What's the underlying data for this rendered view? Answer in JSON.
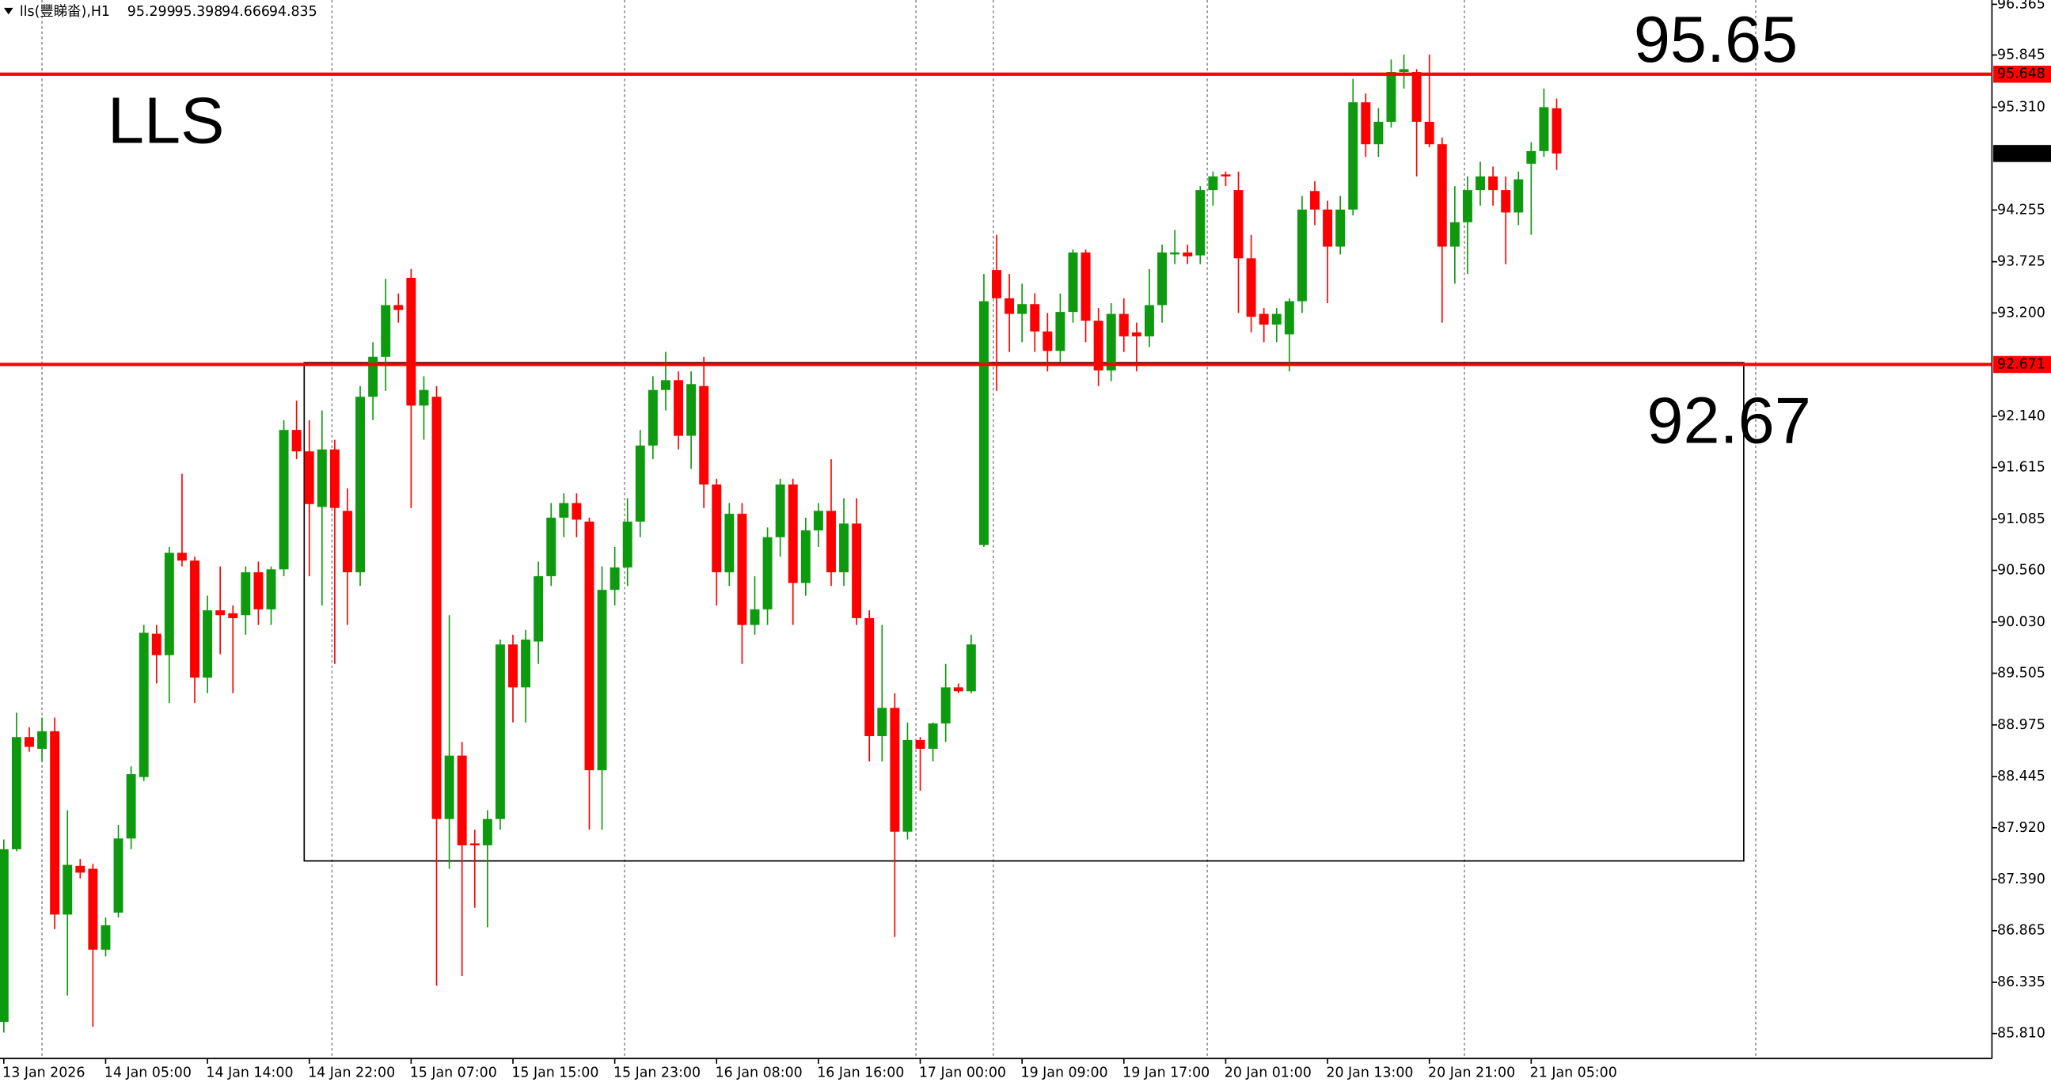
{
  "chart_data": {
    "type": "candlestick",
    "title": "lls(豐睇畓),H1",
    "up_color": "#0e9a0e",
    "down_color": "#ff0000",
    "open": [
      85.93,
      87.7,
      88.85,
      88.73,
      88.91,
      87.03,
      87.53,
      87.5,
      86.67,
      87.05,
      87.81,
      88.44,
      89.91,
      89.69,
      90.74,
      90.66,
      89.46,
      90.15,
      90.12,
      90.1,
      90.54,
      90.16,
      90.57,
      92.0,
      91.78,
      91.21,
      91.8,
      91.17,
      90.54,
      92.34,
      92.75,
      93.28,
      93.56,
      92.25,
      92.34,
      88.01,
      88.66,
      87.76,
      87.74,
      88.01,
      89.8,
      89.36,
      89.83,
      90.5,
      91.1,
      91.25,
      91.06,
      88.51,
      90.36,
      90.59,
      91.06,
      91.84,
      92.41,
      92.51,
      91.94,
      92.45,
      91.44,
      90.54,
      91.14,
      90.0,
      90.16,
      90.9,
      91.44,
      90.43,
      90.97,
      91.17,
      90.54,
      91.04,
      90.07,
      88.86,
      89.15,
      87.88,
      88.82,
      88.73,
      88.99,
      89.36,
      89.32,
      90.82,
      93.64,
      93.35,
      93.19,
      93.29,
      93.01,
      92.81,
      93.21,
      93.82,
      93.12,
      92.61,
      93.19,
      93.0,
      92.96,
      93.28,
      93.8,
      93.82,
      93.79,
      94.46,
      94.62,
      94.46,
      93.76,
      93.19,
      93.08,
      92.98,
      93.32,
      94.45,
      94.26,
      93.88,
      94.26,
      95.36,
      94.93,
      95.16,
      95.67,
      95.67,
      95.16,
      94.93,
      93.88,
      94.13,
      94.46,
      94.6,
      94.46,
      94.23,
      94.73,
      94.86,
      95.299
    ],
    "high": [
      87.8,
      89.1,
      88.95,
      89.05,
      89.05,
      88.1,
      87.6,
      87.55,
      87.0,
      87.95,
      88.55,
      90.0,
      90.0,
      90.8,
      91.55,
      90.7,
      90.3,
      90.6,
      90.2,
      90.6,
      90.65,
      90.6,
      92.1,
      92.3,
      92.1,
      92.2,
      91.9,
      91.4,
      92.45,
      92.9,
      93.55,
      93.4,
      93.65,
      92.55,
      92.45,
      90.1,
      88.8,
      87.9,
      88.1,
      89.85,
      89.9,
      89.95,
      90.65,
      91.25,
      91.35,
      91.35,
      91.1,
      90.6,
      90.8,
      91.3,
      92.0,
      92.55,
      92.8,
      92.6,
      92.6,
      92.75,
      91.5,
      91.25,
      91.25,
      90.5,
      91.0,
      91.5,
      91.5,
      91.1,
      91.25,
      91.7,
      91.3,
      91.3,
      90.15,
      90.0,
      89.3,
      89.0,
      88.85,
      89.0,
      89.6,
      89.4,
      89.9,
      93.6,
      94.0,
      93.6,
      93.5,
      93.4,
      93.2,
      93.4,
      93.85,
      93.85,
      93.25,
      93.3,
      93.35,
      93.1,
      93.65,
      93.9,
      94.05,
      93.9,
      94.5,
      94.65,
      94.65,
      94.65,
      94.0,
      93.25,
      93.25,
      93.35,
      94.4,
      94.55,
      94.35,
      94.4,
      95.6,
      95.45,
      95.3,
      95.8,
      95.85,
      95.7,
      95.85,
      95.0,
      94.5,
      94.6,
      94.75,
      94.7,
      94.6,
      94.65,
      94.95,
      95.5,
      95.398
    ],
    "low": [
      85.82,
      87.68,
      88.7,
      88.6,
      86.88,
      86.2,
      87.4,
      85.88,
      86.6,
      87.0,
      87.7,
      88.4,
      89.4,
      89.2,
      90.6,
      89.2,
      89.3,
      89.7,
      89.3,
      89.9,
      90.0,
      90.0,
      90.5,
      91.7,
      90.5,
      90.2,
      89.6,
      90.0,
      90.4,
      92.1,
      92.4,
      93.1,
      91.2,
      91.9,
      86.3,
      87.5,
      86.4,
      87.1,
      86.9,
      87.9,
      89.0,
      89.0,
      89.6,
      90.4,
      90.9,
      90.9,
      87.9,
      87.9,
      90.2,
      90.4,
      90.9,
      91.7,
      92.2,
      91.8,
      91.6,
      91.2,
      90.2,
      90.4,
      89.6,
      89.9,
      90.0,
      90.7,
      90.0,
      90.3,
      90.8,
      90.4,
      90.4,
      90.0,
      88.6,
      88.6,
      86.8,
      87.8,
      88.3,
      88.6,
      88.8,
      89.3,
      89.3,
      90.8,
      92.4,
      92.8,
      92.9,
      92.8,
      92.6,
      92.7,
      93.1,
      92.9,
      92.45,
      92.5,
      92.8,
      92.6,
      92.85,
      93.1,
      93.7,
      93.7,
      93.7,
      94.3,
      94.5,
      93.2,
      93.0,
      92.9,
      92.9,
      92.6,
      93.2,
      94.1,
      93.3,
      93.8,
      94.2,
      94.8,
      94.8,
      95.1,
      95.5,
      94.6,
      94.9,
      93.1,
      93.5,
      93.6,
      94.3,
      94.3,
      93.7,
      94.1,
      94.0,
      94.8,
      94.666
    ],
    "close": [
      87.7,
      88.85,
      88.75,
      88.91,
      87.03,
      87.54,
      87.46,
      86.67,
      86.92,
      87.81,
      88.47,
      89.92,
      89.69,
      90.74,
      90.66,
      89.46,
      90.15,
      90.1,
      90.07,
      90.54,
      90.16,
      90.57,
      92.0,
      91.78,
      91.24,
      91.8,
      91.2,
      90.54,
      92.34,
      92.75,
      93.28,
      93.23,
      92.25,
      92.41,
      88.01,
      88.66,
      87.74,
      87.74,
      88.01,
      89.8,
      89.36,
      89.85,
      90.5,
      91.1,
      91.25,
      91.08,
      88.51,
      90.36,
      90.59,
      91.06,
      91.84,
      92.41,
      92.51,
      91.94,
      92.47,
      91.44,
      90.54,
      91.14,
      90.0,
      90.16,
      90.9,
      91.44,
      90.43,
      90.97,
      91.17,
      90.54,
      91.04,
      90.07,
      88.86,
      89.15,
      87.88,
      88.82,
      88.73,
      88.99,
      89.36,
      89.32,
      89.8,
      93.32,
      93.35,
      93.19,
      93.29,
      93.01,
      92.81,
      93.21,
      93.82,
      93.12,
      92.61,
      93.19,
      92.96,
      92.96,
      93.28,
      93.82,
      93.82,
      93.78,
      94.46,
      94.6,
      94.6,
      93.76,
      93.16,
      93.08,
      93.19,
      93.32,
      94.26,
      94.26,
      93.88,
      94.26,
      95.36,
      94.93,
      95.16,
      95.67,
      95.7,
      95.16,
      94.93,
      93.88,
      94.13,
      94.46,
      94.6,
      94.46,
      94.23,
      94.57,
      94.86,
      95.31,
      94.835
    ],
    "xlim": [
      -0.3,
      156.2
    ],
    "xticks": [
      {
        "value": 0,
        "label": "13 Jan 2026"
      },
      {
        "value": 8,
        "label": "14 Jan 05:00"
      },
      {
        "value": 16,
        "label": "14 Jan 14:00"
      },
      {
        "value": 24,
        "label": "14 Jan 22:00"
      },
      {
        "value": 32,
        "label": "15 Jan 07:00"
      },
      {
        "value": 40,
        "label": "15 Jan 15:00"
      },
      {
        "value": 48,
        "label": "15 Jan 23:00"
      },
      {
        "value": 56,
        "label": "16 Jan 08:00"
      },
      {
        "value": 64,
        "label": "16 Jan 16:00"
      },
      {
        "value": 72,
        "label": "17 Jan 00:00"
      },
      {
        "value": 80,
        "label": "19 Jan 09:00"
      },
      {
        "value": 88,
        "label": "19 Jan 17:00"
      },
      {
        "value": 96,
        "label": "20 Jan 01:00"
      },
      {
        "value": 104,
        "label": "20 Jan 13:00"
      },
      {
        "value": 112,
        "label": "20 Jan 21:00"
      },
      {
        "value": 120,
        "label": "21 Jan 05:00"
      }
    ],
    "ylim": [
      85.554,
      96.409
    ],
    "yticks": [
      96.365,
      95.845,
      {
        "value": 95.31,
        "label": "95.310"
      },
      94.255,
      93.725,
      {
        "value": 93.2,
        "label": "93.200"
      },
      {
        "value": 92.14,
        "label": "92.140"
      },
      91.615,
      91.085,
      {
        "value": 90.56,
        "label": "90.560"
      },
      {
        "value": 90.03,
        "label": "90.030"
      },
      89.505,
      88.975,
      88.445,
      {
        "value": 87.92,
        "label": "87.920"
      },
      {
        "value": 87.39,
        "label": "87.390"
      },
      86.865,
      86.335,
      {
        "value": 85.81,
        "label": "85.810"
      }
    ],
    "hlines": [
      {
        "value": 95.648,
        "color": "#ff0000"
      },
      {
        "value": 92.671,
        "color": "#ff0000"
      }
    ],
    "rectangle": {
      "x": [
        23.6,
        136.7
      ],
      "y": [
        87.58,
        92.69
      ]
    },
    "annotations": [
      "LLS",
      "95.65",
      "92.67"
    ]
  }
}
